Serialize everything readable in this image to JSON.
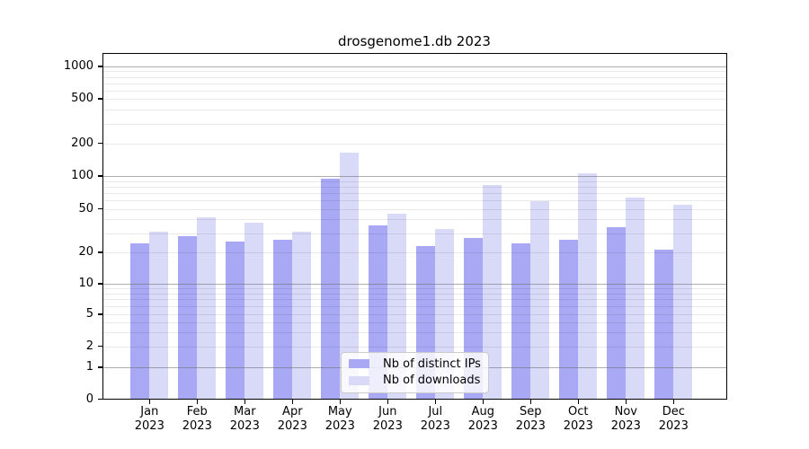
{
  "chart_data": {
    "type": "bar",
    "title": "drosgenome1.db 2023",
    "categories": [
      "Jan 2023",
      "Feb 2023",
      "Mar 2023",
      "Apr 2023",
      "May 2023",
      "Jun 2023",
      "Jul 2023",
      "Aug 2023",
      "Sep 2023",
      "Oct 2023",
      "Nov 2023",
      "Dec 2023"
    ],
    "series": [
      {
        "name": "Nb of distinct IPs",
        "color": "#a8a8f4",
        "values": [
          24,
          28,
          25,
          26,
          94,
          35,
          23,
          27,
          24,
          26,
          34,
          21
        ]
      },
      {
        "name": "Nb of downloads",
        "color": "#d9d9f8",
        "values": [
          31,
          42,
          37,
          31,
          165,
          45,
          33,
          82,
          59,
          105,
          64,
          54
        ]
      }
    ],
    "y_axis": {
      "scale": "log-with-zero",
      "tick_values": [
        0,
        1,
        2,
        5,
        10,
        20,
        50,
        100,
        200,
        500,
        1000
      ],
      "major_grid_values": [
        1,
        10,
        100,
        1000
      ],
      "minor_grid_multiples": [
        2,
        3,
        4,
        5,
        6,
        7,
        8,
        9
      ],
      "ylim": [
        0,
        1000
      ]
    },
    "grid": "on",
    "legend": {
      "position": "inside-bottom-center"
    }
  }
}
